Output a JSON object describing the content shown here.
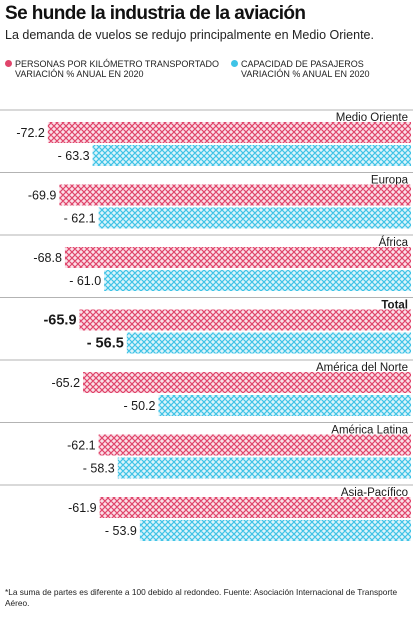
{
  "header": {
    "title": "Se hunde la industria de la aviación",
    "subtitle": "La demanda de vuelos se redujo principalmente en Medio Oriente."
  },
  "legend": [
    {
      "line1": "PERSONAS POR KILÓMETRO TRANSPORTADO",
      "line2": "VARIACIÓN % ANUAL EN 2020",
      "color": "#e0456b"
    },
    {
      "line1": "CAPACIDAD DE PASAJEROS",
      "line2": "VARIACIÓN % ANUAL EN 2020",
      "color": "#3fc3e6"
    }
  ],
  "chart_data": {
    "type": "bar",
    "orientation": "horizontal",
    "categories": [
      "Medio Oriente",
      "Europa",
      "África",
      "Total",
      "América del Norte",
      "América Latina",
      "Asia-Pacífico"
    ],
    "series": [
      {
        "name": "PERSONAS POR KILÓMETRO TRANSPORTADO VARIACIÓN % ANUAL EN 2020",
        "color": "#e0456b",
        "values": [
          -72.2,
          -69.9,
          -68.8,
          -65.9,
          -65.2,
          -62.1,
          -61.9
        ],
        "labels": [
          "-72.2",
          "-69.9",
          "-68.8",
          "-65.9",
          "-65.2",
          "-62.1",
          "-61.9"
        ]
      },
      {
        "name": "CAPACIDAD DE PASAJEROS VARIACIÓN % ANUAL EN 2020",
        "color": "#3fc3e6",
        "values": [
          -63.3,
          -62.1,
          -61.0,
          -56.5,
          -50.2,
          -58.3,
          -53.9
        ],
        "labels": [
          "- 63.3",
          "- 62.1",
          "- 61.0",
          "- 56.5",
          "- 50.2",
          "- 58.3",
          "- 53.9"
        ]
      }
    ],
    "bold_category": "Total"
  },
  "footnote": "*La suma de partes es diferente a 100 debido al redondeo. Fuente: Asociación Internacional de Transporte Aéreo."
}
